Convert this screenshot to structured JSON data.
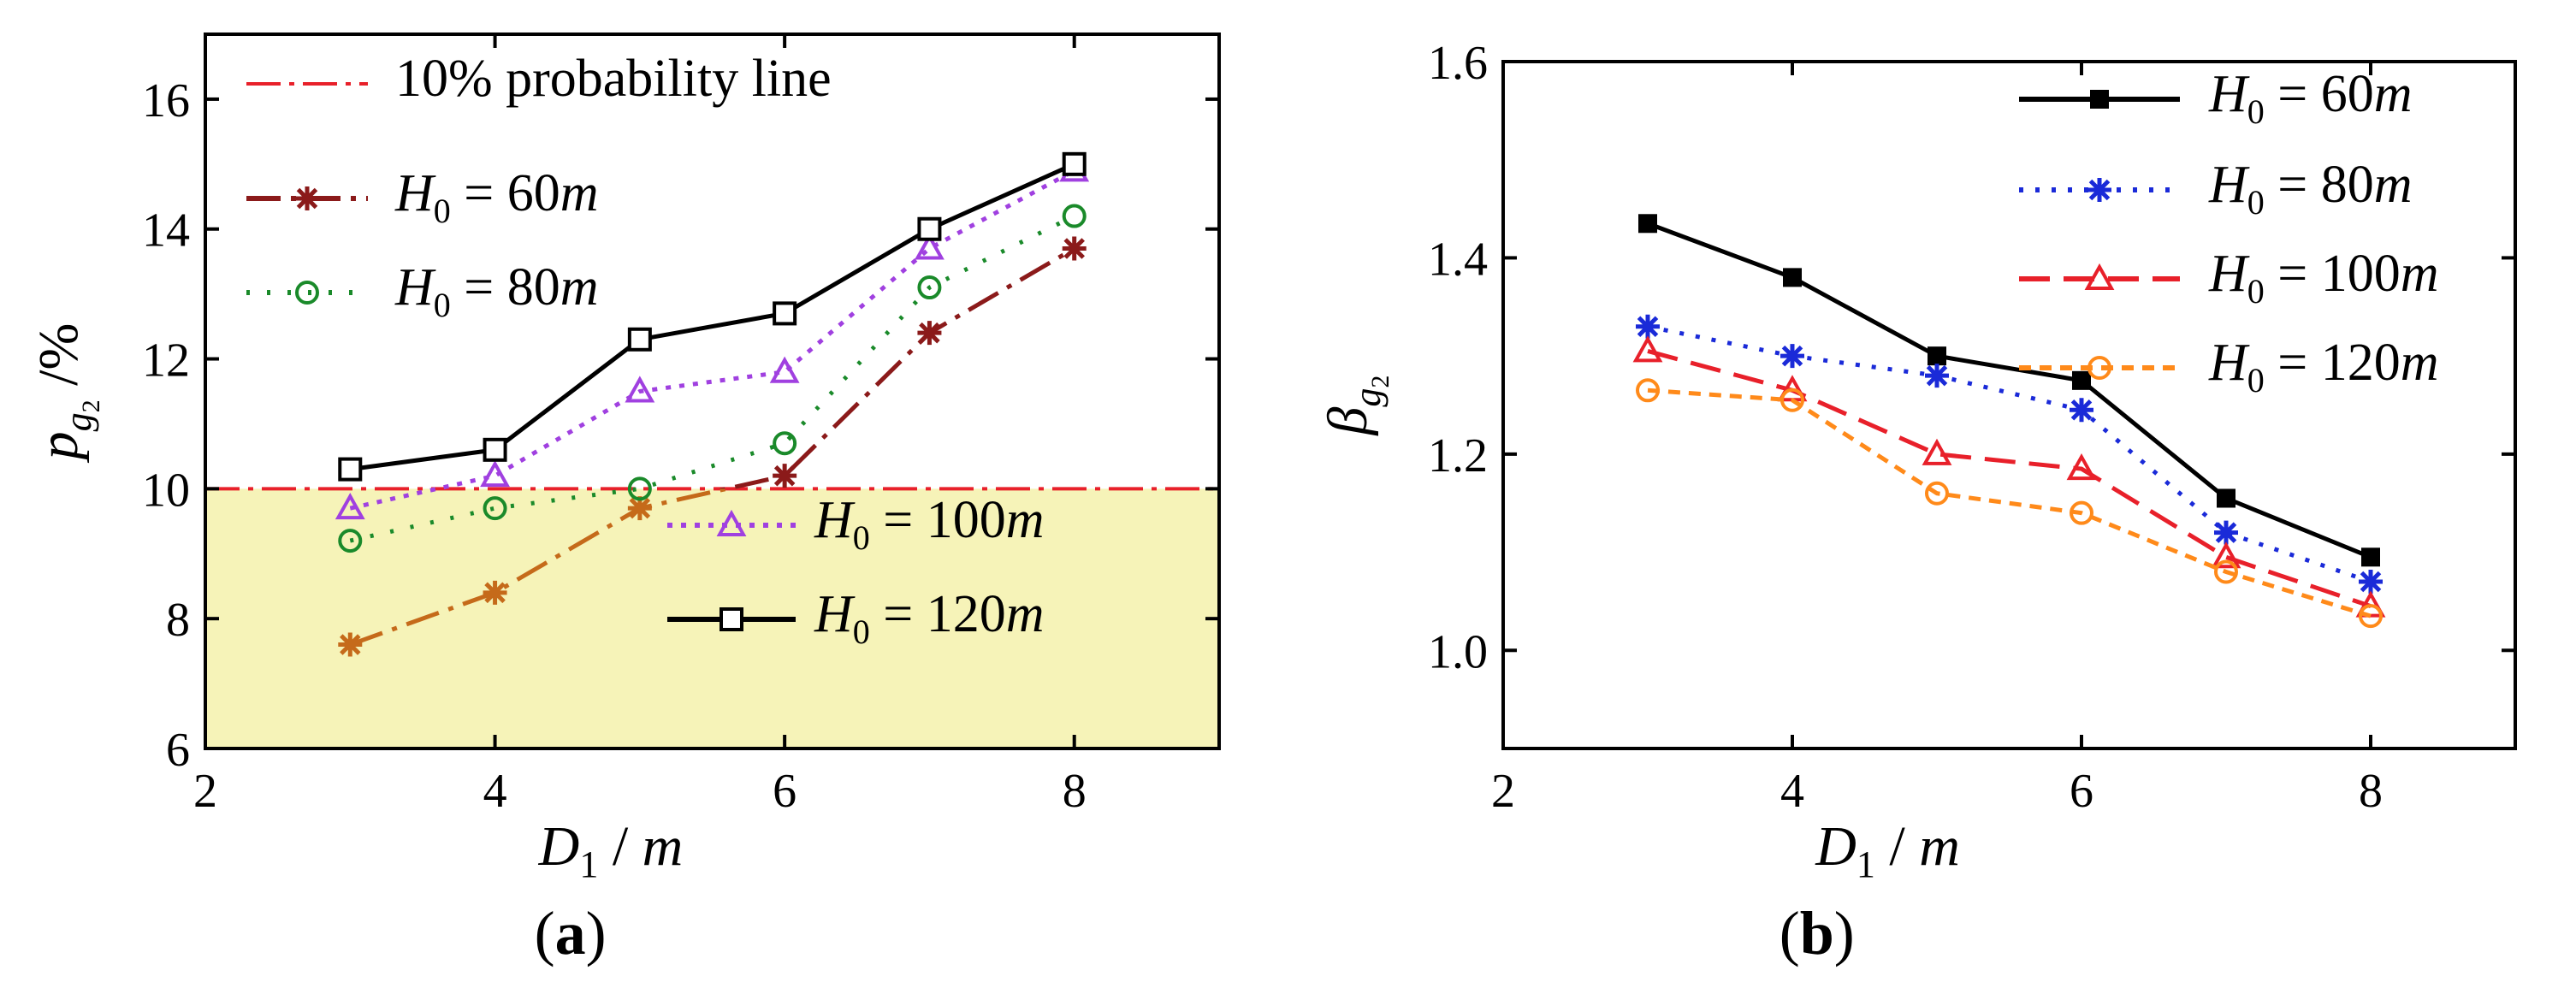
{
  "chart_data": [
    {
      "type": "line",
      "panel_label": "(a)",
      "xlabel": "D",
      "xlabel_sub": "1",
      "xlabel_unit": "/ m",
      "ylabel": "p",
      "ylabel_sub": "g",
      "ylabel_subsub": "2",
      "ylabel_unit": "/%",
      "xlim": [
        2,
        9
      ],
      "ylim": [
        6,
        17
      ],
      "xticks": [
        2,
        4,
        6,
        8
      ],
      "yticks": [
        6,
        8,
        10,
        12,
        14,
        16
      ],
      "threshold": {
        "value": 10,
        "label": "10% probability line",
        "shade_color": "#f6f3b8",
        "color": "#e8202a"
      },
      "x": [
        3,
        4,
        5,
        6,
        7,
        8
      ],
      "series": [
        {
          "name": "H0=60m",
          "label_sym": "H",
          "label_sub": "0",
          "label_rest": " = 60",
          "label_unit": "m",
          "values": [
            7.6,
            8.4,
            9.7,
            10.2,
            12.4,
            13.7
          ],
          "color": "#8b1a1a",
          "color_below": "#c56a1a",
          "dash": "40,12,6,12",
          "marker": "star"
        },
        {
          "name": "H0=80m",
          "label_sym": "H",
          "label_sub": "0",
          "label_rest": " = 80",
          "label_unit": "m",
          "values": [
            9.2,
            9.7,
            10.0,
            10.7,
            13.1,
            14.2
          ],
          "color": "#1a8a2a",
          "dash": "4,20",
          "marker": "circle"
        },
        {
          "name": "H0=100m",
          "label_sym": "H",
          "label_sub": "0",
          "label_rest": " = 100",
          "label_unit": "m",
          "values": [
            9.7,
            10.2,
            11.5,
            11.8,
            13.7,
            14.9
          ],
          "color": "#a040e0",
          "dash": "6,10",
          "marker": "triangle"
        },
        {
          "name": "H0=120m",
          "label_sym": "H",
          "label_sub": "0",
          "label_rest": " = 120",
          "label_unit": "m",
          "values": [
            10.3,
            10.6,
            12.3,
            12.7,
            14.0,
            15.0
          ],
          "color": "#000000",
          "dash": "",
          "marker": "square-open"
        }
      ]
    },
    {
      "type": "line",
      "panel_label": "(b)",
      "xlabel": "D",
      "xlabel_sub": "1",
      "xlabel_unit": "/ m",
      "ylabel": "β",
      "ylabel_sub": "g",
      "ylabel_subsub": "2",
      "xlim": [
        2,
        9
      ],
      "ylim": [
        0.9,
        1.6
      ],
      "xticks": [
        2,
        4,
        6,
        8
      ],
      "yticks": [
        1.0,
        1.2,
        1.4,
        1.6
      ],
      "ytick_labels": [
        "1.0",
        "1.2",
        "1.4",
        "1.6"
      ],
      "x": [
        3,
        4,
        5,
        6,
        7,
        8
      ],
      "series": [
        {
          "name": "H0=60m",
          "label_sym": "H",
          "label_sub": "0",
          "label_rest": " = 60",
          "label_unit": "m",
          "values": [
            1.435,
            1.38,
            1.3,
            1.275,
            1.155,
            1.095
          ],
          "color": "#000000",
          "dash": "",
          "marker": "square-filled"
        },
        {
          "name": "H0=80m",
          "label_sym": "H",
          "label_sub": "0",
          "label_rest": " = 80",
          "label_unit": "m",
          "values": [
            1.33,
            1.3,
            1.28,
            1.245,
            1.12,
            1.07
          ],
          "color": "#1a2ad8",
          "dash": "5,14",
          "marker": "star"
        },
        {
          "name": "H0=100m",
          "label_sym": "H",
          "label_sub": "0",
          "label_rest": " = 100",
          "label_unit": "m",
          "values": [
            1.305,
            1.265,
            1.2,
            1.185,
            1.095,
            1.045
          ],
          "color": "#e8202a",
          "dash": "36,16",
          "marker": "triangle"
        },
        {
          "name": "H0=120m",
          "label_sym": "H",
          "label_sub": "0",
          "label_rest": " = 120",
          "label_unit": "m",
          "values": [
            1.265,
            1.255,
            1.16,
            1.14,
            1.08,
            1.035
          ],
          "color": "#ff8a1a",
          "dash": "14,10",
          "marker": "circle"
        }
      ]
    }
  ]
}
